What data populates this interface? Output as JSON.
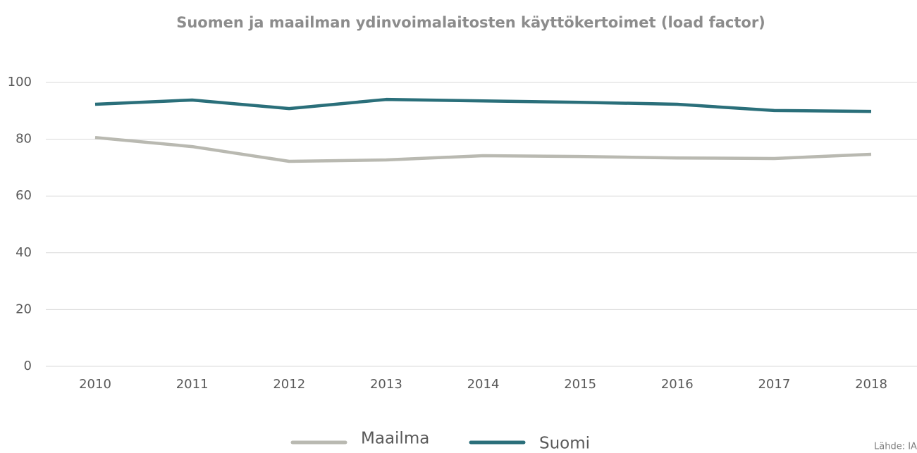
{
  "chart_data": {
    "type": "line",
    "title": "Suomen ja maailman ydinvoimalaitosten käyttökertoimet (load factor)",
    "source": "Lähde: IAEA",
    "categories": [
      "2010",
      "2011",
      "2012",
      "2013",
      "2014",
      "2015",
      "2016",
      "2017",
      "2018"
    ],
    "series": [
      {
        "name": "Maailma",
        "color": "#b9b9b1",
        "values": [
          80.6,
          77.4,
          72.2,
          72.7,
          74.2,
          73.9,
          73.4,
          73.2,
          74.7
        ]
      },
      {
        "name": "Suomi",
        "color": "#2a6f7a",
        "values": [
          92.3,
          93.8,
          90.8,
          94.0,
          93.5,
          93.0,
          92.3,
          90.1,
          89.8
        ]
      }
    ],
    "ylim": [
      0,
      100
    ],
    "yticks": [
      0,
      20,
      40,
      60,
      80,
      100
    ],
    "grid": true,
    "legend": "bottom"
  }
}
